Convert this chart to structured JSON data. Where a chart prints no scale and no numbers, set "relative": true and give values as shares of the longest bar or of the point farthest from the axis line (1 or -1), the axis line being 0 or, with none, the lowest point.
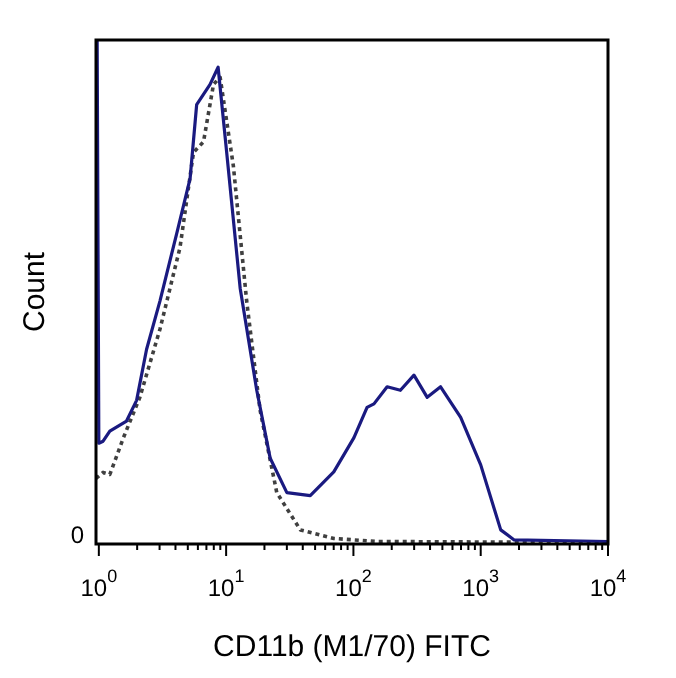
{
  "chart_data": {
    "type": "line",
    "relative": true,
    "xlabel": "CD11b (M1/70) FITC",
    "ylabel": "Count",
    "log": "x",
    "xlim": [
      0.95,
      10000
    ],
    "xticks": [
      {
        "value": 1,
        "label": "10$^{0}$"
      },
      {
        "value": 2,
        "label": null
      },
      {
        "value": 3,
        "label": null
      },
      {
        "value": 4,
        "label": null
      },
      {
        "value": 5,
        "label": null
      },
      {
        "value": 6,
        "label": null
      },
      {
        "value": 7,
        "label": null
      },
      {
        "value": 8,
        "label": null
      },
      {
        "value": 9,
        "label": null
      },
      {
        "value": 10,
        "label": "10$^{1}$"
      },
      {
        "value": 20,
        "label": null
      },
      {
        "value": 30,
        "label": null
      },
      {
        "value": 40,
        "label": null
      },
      {
        "value": 50,
        "label": null
      },
      {
        "value": 60,
        "label": null
      },
      {
        "value": 70,
        "label": null
      },
      {
        "value": 80,
        "label": null
      },
      {
        "value": 90,
        "label": null
      },
      {
        "value": 100,
        "label": "10$^{2}$"
      },
      {
        "value": 200,
        "label": null
      },
      {
        "value": 300,
        "label": null
      },
      {
        "value": 400,
        "label": null
      },
      {
        "value": 500,
        "label": null
      },
      {
        "value": 600,
        "label": null
      },
      {
        "value": 700,
        "label": null
      },
      {
        "value": 800,
        "label": null
      },
      {
        "value": 900,
        "label": null
      },
      {
        "value": 1000,
        "label": "10$^{3}$"
      },
      {
        "value": 2000,
        "label": null
      },
      {
        "value": 3000,
        "label": null
      },
      {
        "value": 4000,
        "label": null
      },
      {
        "value": 5000,
        "label": null
      },
      {
        "value": 6000,
        "label": null
      },
      {
        "value": 7000,
        "label": null
      },
      {
        "value": 8000,
        "label": null
      },
      {
        "value": 9000,
        "label": null
      },
      {
        "value": 10000,
        "label": "10$^{4}$"
      }
    ],
    "annotations": [
      "0"
    ],
    "legend": false,
    "marker": "none",
    "series": [
      {
        "color": "#1a1a80",
        "line_style": "solid",
        "x": [
          0.97,
          1,
          1.08,
          1.22,
          1.65,
          1.98,
          2.37,
          3.02,
          4.08,
          5.21,
          5.87,
          7.48,
          8.65,
          10.1,
          12.9,
          17.4,
          22.2,
          30,
          45.8,
          70.1,
          101,
          128,
          145,
          184,
          234,
          299,
          380,
          484,
          696,
          1000,
          1436,
          1832,
          10000
        ],
        "values": [
          1,
          0.2,
          0.204,
          0.224,
          0.244,
          0.285,
          0.386,
          0.482,
          0.615,
          0.725,
          0.872,
          0.912,
          0.946,
          0.777,
          0.507,
          0.305,
          0.17,
          0.102,
          0.096,
          0.143,
          0.211,
          0.271,
          0.278,
          0.312,
          0.305,
          0.335,
          0.291,
          0.312,
          0.251,
          0.157,
          0.028,
          0.008,
          0.005
        ]
      },
      {
        "color": "#404040",
        "line_style": "dotted",
        "x": [
          0.95,
          1.08,
          1.22,
          1.56,
          2.1,
          3.02,
          4.34,
          5.54,
          6.64,
          7.96,
          8.97,
          11.4,
          14.5,
          18.5,
          25,
          38.3,
          70.1,
          153,
          1000,
          10000
        ],
        "values": [
          0.13,
          0.142,
          0.138,
          0.211,
          0.291,
          0.426,
          0.588,
          0.777,
          0.798,
          0.912,
          0.926,
          0.75,
          0.482,
          0.265,
          0.102,
          0.028,
          0.011,
          0.005,
          0.004,
          0.003
        ]
      }
    ]
  }
}
